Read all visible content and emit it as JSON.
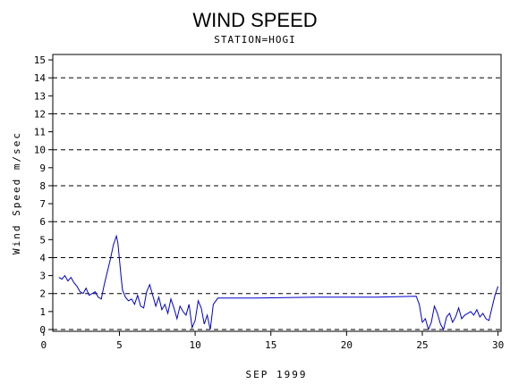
{
  "chart_data": {
    "type": "line",
    "title": "WIND SPEED",
    "subtitle": "STATION=HOGI",
    "xlabel": "SEP 1999",
    "ylabel": "Wind Speed m/sec",
    "xlim": [
      0.6,
      30.2
    ],
    "ylim": [
      -0.1,
      15.3
    ],
    "x_ticks": [
      0,
      5,
      10,
      15,
      20,
      25,
      30
    ],
    "x_tick_labels": [
      "0",
      "5",
      "10",
      "15",
      "20",
      "25",
      "30"
    ],
    "y_ticks": [
      0,
      1,
      2,
      3,
      4,
      5,
      6,
      7,
      8,
      9,
      10,
      11,
      12,
      13,
      14,
      15
    ],
    "y_tick_labels": [
      "0",
      "1",
      "2",
      "3",
      "4",
      "5",
      "6",
      "7",
      "8",
      "9",
      "10",
      "11",
      "12",
      "13",
      "14",
      "15"
    ],
    "reference_lines": [
      0,
      2,
      4,
      6,
      8,
      10,
      12,
      14
    ],
    "grid": "dashed horizontal at even values",
    "line_color": "#0000cc",
    "series": [
      {
        "x": [
          1.0,
          1.2,
          1.4,
          1.6,
          1.8,
          2.0,
          2.2,
          2.4,
          2.6,
          2.8,
          3.0,
          3.2,
          3.4,
          3.6,
          3.8,
          4.0,
          4.2,
          4.4,
          4.6,
          4.8,
          4.9,
          5.0,
          5.1,
          5.2,
          5.4,
          5.6,
          5.8,
          6.0,
          6.2,
          6.4,
          6.6,
          6.8,
          7.0,
          7.2,
          7.4,
          7.6,
          7.8,
          8.0,
          8.2,
          8.4,
          8.6,
          8.8,
          9.0,
          9.2,
          9.4,
          9.6,
          9.8,
          10.0,
          10.2,
          10.4,
          10.6,
          10.8,
          11.0,
          11.2,
          11.5,
          14.0,
          18.0,
          22.0,
          24.6,
          24.8,
          25.0,
          25.2,
          25.4,
          25.6,
          25.8,
          26.0,
          26.2,
          26.4,
          26.6,
          26.8,
          27.0,
          27.2,
          27.4,
          27.6,
          27.8,
          28.0,
          28.2,
          28.4,
          28.6,
          28.8,
          29.0,
          29.2,
          29.4,
          29.6,
          29.8,
          30.0
        ],
        "y": [
          2.9,
          2.8,
          3.0,
          2.7,
          2.9,
          2.6,
          2.4,
          2.1,
          2.0,
          2.3,
          1.9,
          2.0,
          2.1,
          1.8,
          1.7,
          2.5,
          3.2,
          3.9,
          4.7,
          5.2,
          4.8,
          3.9,
          3.0,
          2.2,
          1.8,
          1.6,
          1.7,
          1.4,
          1.9,
          1.3,
          1.2,
          2.1,
          2.5,
          1.9,
          1.3,
          1.8,
          1.1,
          1.4,
          0.9,
          1.7,
          1.2,
          0.6,
          1.3,
          1.0,
          0.8,
          1.4,
          0.1,
          0.5,
          1.6,
          1.2,
          0.3,
          0.8,
          0.0,
          1.4,
          1.75,
          1.75,
          1.8,
          1.8,
          1.85,
          1.4,
          0.4,
          0.6,
          0.0,
          0.4,
          1.3,
          0.9,
          0.3,
          0.0,
          0.7,
          0.9,
          0.4,
          0.7,
          1.2,
          0.6,
          0.8,
          0.9,
          1.0,
          0.8,
          1.1,
          0.7,
          0.9,
          0.6,
          0.5,
          1.2,
          1.9,
          2.4
        ]
      }
    ]
  }
}
